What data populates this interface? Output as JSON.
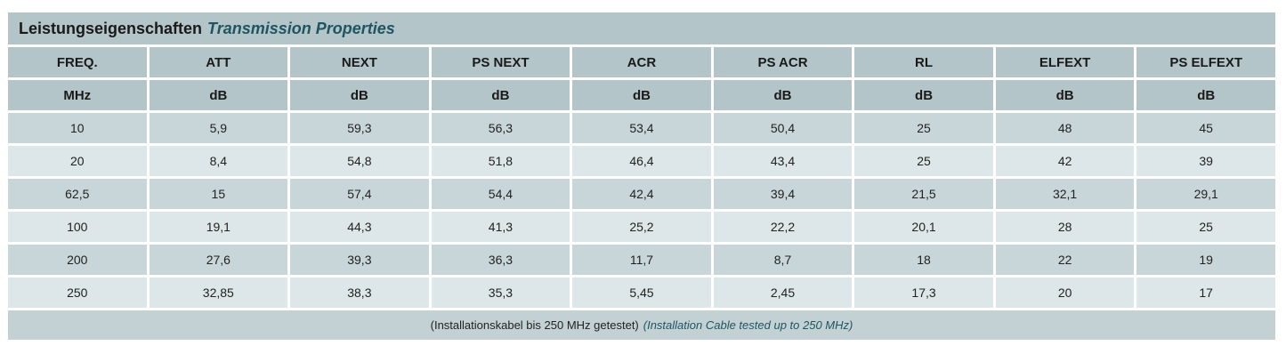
{
  "title": {
    "de": "Leistungseigenschaften",
    "en": "Transmission Properties"
  },
  "headers": [
    "FREQ.",
    "ATT",
    "NEXT",
    "PS NEXT",
    "ACR",
    "PS ACR",
    "RL",
    "ELFEXT",
    "PS ELFEXT"
  ],
  "units": [
    "MHz",
    "dB",
    "dB",
    "dB",
    "dB",
    "dB",
    "dB",
    "dB",
    "dB"
  ],
  "rows": [
    [
      "10",
      "5,9",
      "59,3",
      "56,3",
      "53,4",
      "50,4",
      "25",
      "48",
      "45"
    ],
    [
      "20",
      "8,4",
      "54,8",
      "51,8",
      "46,4",
      "43,4",
      "25",
      "42",
      "39"
    ],
    [
      "62,5",
      "15",
      "57,4",
      "54,4",
      "42,4",
      "39,4",
      "21,5",
      "32,1",
      "29,1"
    ],
    [
      "100",
      "19,1",
      "44,3",
      "41,3",
      "25,2",
      "22,2",
      "20,1",
      "28",
      "25"
    ],
    [
      "200",
      "27,6",
      "39,3",
      "36,3",
      "11,7",
      "8,7",
      "18",
      "22",
      "19"
    ],
    [
      "250",
      "32,85",
      "38,3",
      "35,3",
      "5,45",
      "2,45",
      "17,3",
      "20",
      "17"
    ]
  ],
  "footnote": {
    "de": "(Installationskabel bis 250 MHz getestet)",
    "en": "(Installation Cable tested up to 250 MHz)"
  }
}
